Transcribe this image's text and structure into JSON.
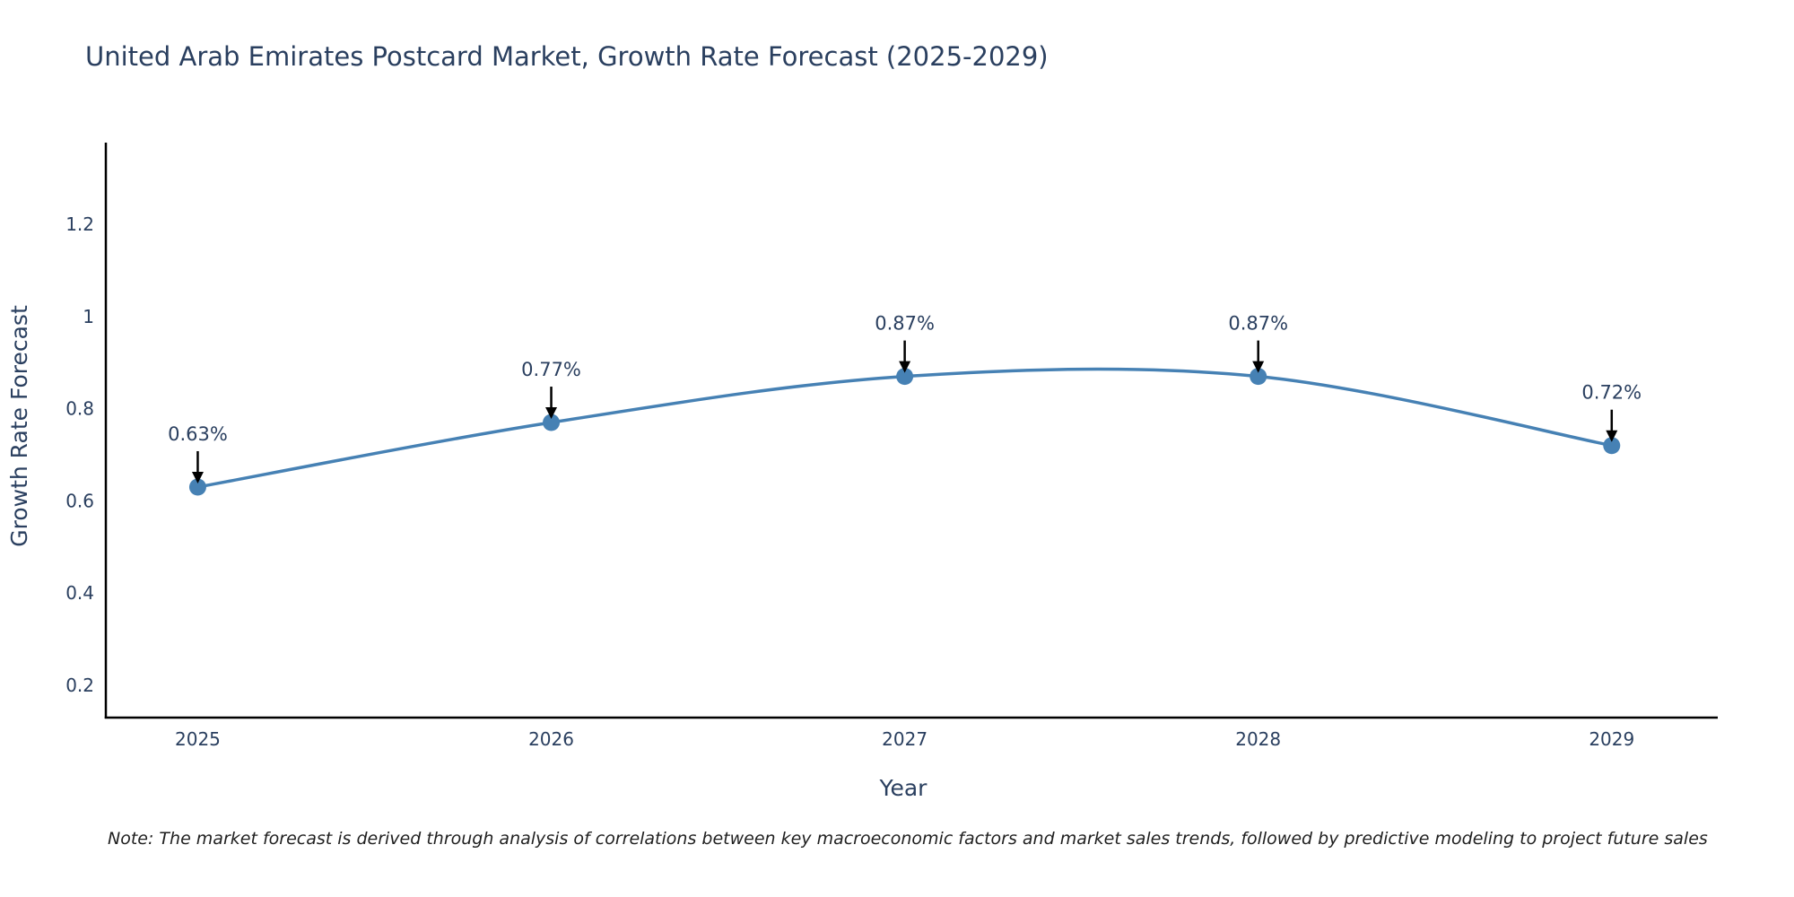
{
  "title": "United Arab Emirates Postcard Market, Growth Rate Forecast (2025-2029)",
  "note": "Note: The market forecast is derived through analysis of correlations between key macroeconomic factors and market sales trends, followed by predictive modeling to project future sales",
  "colors": {
    "line": "#4681b4",
    "marker": "#4681b4",
    "title_text": "#2a3f5f",
    "axis_text": "#2a3f5f",
    "axis_line": "#000000",
    "arrow": "#000000",
    "note_text": "#1f1f1f",
    "background": "#ffffff"
  },
  "chart_data": {
    "type": "line",
    "title": "United Arab Emirates Postcard Market, Growth Rate Forecast (2025-2029)",
    "xlabel": "Year",
    "ylabel": "Growth Rate Forecast",
    "x": [
      2025,
      2026,
      2027,
      2028,
      2029
    ],
    "values": [
      0.63,
      0.77,
      0.87,
      0.87,
      0.72
    ],
    "point_labels": [
      "0.63%",
      "0.77%",
      "0.87%",
      "0.87%",
      "0.72%"
    ],
    "xticks": {
      "values": [
        2025,
        2026,
        2027,
        2028,
        2029
      ],
      "labels": [
        "2025",
        "2026",
        "2027",
        "2028",
        "2029"
      ]
    },
    "yticks": {
      "values": [
        0.2,
        0.4,
        0.6,
        0.8,
        1,
        1.2
      ],
      "labels": [
        "0.2",
        "0.4",
        "0.6",
        "0.8",
        "1",
        "1.2"
      ]
    },
    "xlim": [
      2024.74,
      2029.3
    ],
    "ylim": [
      0.13,
      1.377
    ],
    "line_shape": "spline",
    "grid": false,
    "legend": false,
    "annotation_style": "down-arrow"
  }
}
